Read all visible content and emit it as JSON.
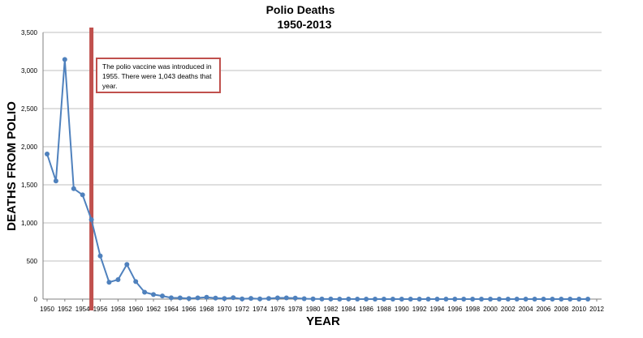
{
  "chart_data": {
    "type": "line",
    "title": "Polio Deaths",
    "subtitle": "1950-2013",
    "xlabel": "YEAR",
    "ylabel": "DEATHS FROM POLIO",
    "ylim": [
      0,
      3500
    ],
    "yticks": [
      0,
      500,
      1000,
      1500,
      2000,
      2500,
      3000,
      3500
    ],
    "ytick_labels": [
      "0",
      "500",
      "1,000",
      "1,500",
      "2,000",
      "2,500",
      "3,000",
      "3,500"
    ],
    "xlim": [
      1950,
      2012
    ],
    "xticks": [
      1950,
      1952,
      1954,
      1956,
      1958,
      1960,
      1962,
      1964,
      1966,
      1968,
      1970,
      1972,
      1974,
      1976,
      1978,
      1980,
      1982,
      1984,
      1986,
      1988,
      1990,
      1992,
      1994,
      1996,
      1998,
      2000,
      2002,
      2004,
      2006,
      2008,
      2010,
      2012
    ],
    "grid": "horizontal",
    "line_color": "#4f81bd",
    "marker_line_color": "#c0504d",
    "series": [
      {
        "x": [
          1950,
          1951,
          1952,
          1953,
          1954,
          1955,
          1956,
          1957,
          1958,
          1959,
          1960,
          1961,
          1962,
          1963,
          1964,
          1965,
          1966,
          1967,
          1968,
          1969,
          1970,
          1971,
          1972,
          1973,
          1974,
          1975,
          1976,
          1977,
          1978,
          1979,
          1980,
          1981,
          1982,
          1983,
          1984,
          1985,
          1986,
          1987,
          1988,
          1989,
          1990,
          1991,
          1992,
          1993,
          1994,
          1995,
          1996,
          1997,
          1998,
          1999,
          2000,
          2001,
          2002,
          2003,
          2004,
          2005,
          2006,
          2007,
          2008,
          2009,
          2010,
          2011
        ],
        "values": [
          1904,
          1551,
          3145,
          1450,
          1368,
          1043,
          566,
          221,
          255,
          454,
          230,
          90,
          60,
          41,
          17,
          16,
          9,
          16,
          24,
          13,
          7,
          18,
          2,
          10,
          3,
          9,
          16,
          16,
          13,
          5,
          2,
          1,
          1,
          0,
          1,
          0,
          0,
          0,
          0,
          0,
          0,
          0,
          0,
          0,
          0,
          0,
          0,
          0,
          0,
          0,
          0,
          0,
          0,
          0,
          0,
          0,
          0,
          0,
          0,
          0,
          0,
          0
        ]
      }
    ],
    "reference_line": {
      "x": 1955,
      "orientation": "vertical"
    },
    "annotation": {
      "x": 1955,
      "lines": [
        "The polio vaccine was introduced in",
        "1955. There were 1,043 deaths that",
        "year."
      ]
    }
  }
}
